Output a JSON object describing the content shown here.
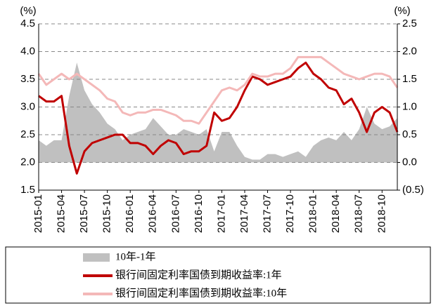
{
  "chart_data": {
    "type": "line",
    "ylabel": "(%)",
    "y2label": "(%)",
    "categories": [
      "2015-01",
      null,
      null,
      "2015-04",
      null,
      null,
      "2015-07",
      null,
      null,
      "2015-10",
      null,
      null,
      "2016-01",
      null,
      null,
      "2016-04",
      null,
      null,
      "2016-07",
      null,
      null,
      "2016-10",
      null,
      null,
      "2017-01",
      null,
      null,
      "2017-04",
      null,
      null,
      "2017-07",
      null,
      null,
      "2017-10",
      null,
      null,
      "2018-01",
      null,
      null,
      "2018-04",
      null,
      null,
      "2018-07",
      null,
      null,
      "2018-10",
      null,
      null
    ],
    "series": [
      {
        "name": "10年-1年",
        "type": "area",
        "axis": "y2",
        "color": "#c0c0c0",
        "values": [
          0.4,
          0.3,
          0.4,
          0.4,
          1.2,
          1.8,
          1.3,
          1.05,
          0.9,
          0.7,
          0.6,
          0.4,
          0.5,
          0.55,
          0.6,
          0.8,
          0.65,
          0.5,
          0.5,
          0.6,
          0.55,
          0.5,
          0.6,
          0.2,
          0.55,
          0.55,
          0.3,
          0.1,
          0.05,
          0.05,
          0.15,
          0.15,
          0.1,
          0.15,
          0.2,
          0.1,
          0.3,
          0.4,
          0.45,
          0.4,
          0.55,
          0.4,
          0.6,
          1.0,
          0.7,
          0.6,
          0.65,
          0.8
        ]
      },
      {
        "name": "银行间固定利率国债到期收益率:1年",
        "type": "line",
        "axis": "y",
        "color": "#c00000",
        "values": [
          3.2,
          3.1,
          3.1,
          3.2,
          2.3,
          1.8,
          2.2,
          2.35,
          2.4,
          2.45,
          2.5,
          2.5,
          2.35,
          2.35,
          2.3,
          2.15,
          2.3,
          2.4,
          2.35,
          2.15,
          2.2,
          2.2,
          2.3,
          2.9,
          2.75,
          2.8,
          3.0,
          3.3,
          3.55,
          3.5,
          3.4,
          3.45,
          3.5,
          3.55,
          3.7,
          3.8,
          3.6,
          3.5,
          3.35,
          3.3,
          3.05,
          3.15,
          2.9,
          2.55,
          2.9,
          3.0,
          2.9,
          2.55
        ]
      },
      {
        "name": "银行间固定利率国债到期收益率:10年",
        "type": "line",
        "axis": "y",
        "color": "#f4b8b8",
        "values": [
          3.6,
          3.4,
          3.5,
          3.6,
          3.5,
          3.6,
          3.5,
          3.4,
          3.3,
          3.15,
          3.1,
          2.9,
          2.85,
          2.9,
          2.9,
          2.95,
          2.95,
          2.9,
          2.85,
          2.75,
          2.75,
          2.7,
          2.9,
          3.1,
          3.3,
          3.35,
          3.3,
          3.4,
          3.6,
          3.55,
          3.55,
          3.6,
          3.6,
          3.7,
          3.9,
          3.9,
          3.9,
          3.9,
          3.8,
          3.7,
          3.6,
          3.55,
          3.5,
          3.55,
          3.6,
          3.6,
          3.55,
          3.35
        ]
      }
    ],
    "ylim": [
      1.5,
      4.5
    ],
    "yticks": [
      1.5,
      {
        "value": 2,
        "label": "2.0"
      },
      2.5,
      {
        "value": 3,
        "label": "3.0"
      },
      3.5,
      {
        "value": 4,
        "label": "4.0"
      },
      4.5
    ],
    "y2lim": [
      -0.5,
      2.5
    ],
    "y2ticks": [
      {
        "value": -0.5,
        "label": "(0.5)"
      },
      {
        "value": 0,
        "label": "0.0"
      },
      0.5,
      {
        "value": 1,
        "label": "1.0"
      },
      1.5,
      {
        "value": 2,
        "label": "2.0"
      },
      2.5
    ],
    "y2_negative_tick_color": "#ff0000",
    "grid": true
  }
}
